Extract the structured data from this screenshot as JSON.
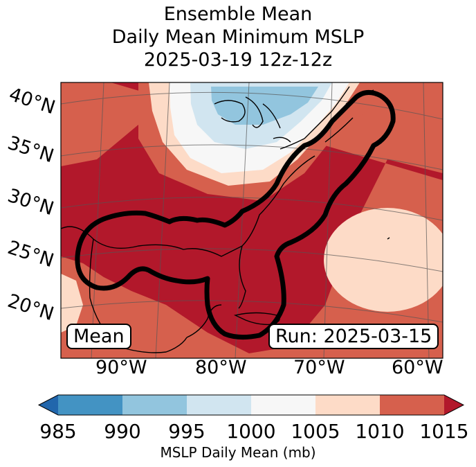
{
  "title": {
    "line1": "Ensemble Mean",
    "line2": "Daily Mean Minimum MSLP",
    "line3": "2025-03-19 12z-12z"
  },
  "map": {
    "lat_labels": [
      "40°N",
      "35°N",
      "30°N",
      "25°N",
      "20°N"
    ],
    "lon_labels": [
      "90°W",
      "80°W",
      "70°W",
      "60°W"
    ],
    "mean_label": "Mean",
    "run_label": "Run: 2025-03-15"
  },
  "colorbar": {
    "label": "MSLP Daily Mean (mb)",
    "ticks": [
      "985",
      "990",
      "995",
      "1000",
      "1005",
      "1010",
      "1015"
    ],
    "colors": [
      "#2166ac",
      "#4393c3",
      "#92c5de",
      "#d1e5f0",
      "#f7f7f7",
      "#fddbc7",
      "#d6604d",
      "#b2182b"
    ]
  }
}
